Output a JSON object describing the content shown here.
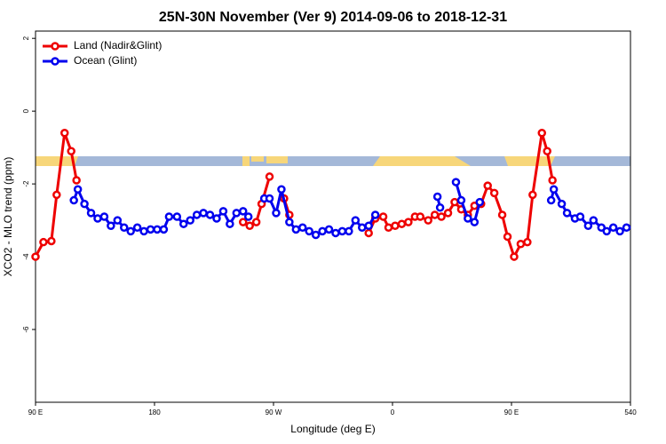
{
  "chart_data": {
    "type": "line",
    "title": "25N-30N November (Ver 9)   2014-09-06 to 2018-12-31",
    "xlabel": "Longitude (deg E)",
    "ylabel": "XCO2 - MLO trend (ppm)",
    "xlim": [
      90,
      540
    ],
    "xticks": [
      {
        "value": 90,
        "label": "90 E"
      },
      180,
      {
        "value": 270,
        "label": "90 W"
      },
      {
        "value": 360,
        "label": "0"
      },
      {
        "value": 450,
        "label": "90 E"
      },
      540
    ],
    "ylim": [
      -8,
      2.2
    ],
    "yticks": [
      2,
      0,
      -2,
      -4,
      -6
    ],
    "legend": "top-left",
    "series": [
      {
        "name": "Land (Nadir&Glint)",
        "color": "#ee0000",
        "x": [
          90,
          96,
          102,
          106,
          112,
          117,
          121,
          null,
          247,
          252,
          257,
          261,
          267,
          null,
          278,
          282,
          null,
          342,
          347,
          353,
          357,
          362,
          367,
          372,
          377,
          381,
          387,
          392,
          397,
          402,
          407,
          412,
          417,
          422,
          427,
          432,
          437,
          443,
          447,
          452,
          457,
          462,
          466,
          473,
          477,
          481
        ],
        "values": [
          -4.0,
          -3.6,
          -3.57,
          -2.3,
          -0.6,
          -1.1,
          -1.9,
          null,
          -3.05,
          -3.15,
          -3.05,
          -2.55,
          -1.8,
          null,
          -2.4,
          -2.85,
          null,
          -3.35,
          -2.95,
          -2.9,
          -3.2,
          -3.15,
          -3.1,
          -3.05,
          -2.9,
          -2.9,
          -3.0,
          -2.85,
          -2.9,
          -2.8,
          -2.5,
          -2.7,
          -2.85,
          -2.6,
          -2.55,
          -2.05,
          -2.25,
          -2.85,
          -3.45,
          -4.0,
          -3.65,
          -3.6,
          -2.3,
          -0.6,
          -1.1,
          -1.9
        ]
      },
      {
        "name": "Ocean (Glint)",
        "color": "#0000ee",
        "x": [
          119,
          122,
          127,
          132,
          137,
          142,
          147,
          152,
          157,
          162,
          167,
          172,
          177,
          182,
          187,
          191,
          197,
          202,
          207,
          212,
          217,
          222,
          227,
          232,
          237,
          242,
          247,
          251,
          null,
          263,
          267,
          272,
          276,
          282,
          287,
          292,
          297,
          302,
          307,
          312,
          317,
          322,
          327,
          332,
          337,
          342,
          347,
          null,
          394,
          396,
          null,
          408,
          412,
          417,
          422,
          426,
          null,
          480,
          482,
          488,
          492,
          498,
          502,
          508,
          512,
          518,
          522,
          527,
          532,
          537
        ],
        "values": [
          -2.45,
          -2.15,
          -2.55,
          -2.8,
          -2.95,
          -2.9,
          -3.15,
          -3.0,
          -3.2,
          -3.3,
          -3.2,
          -3.3,
          -3.25,
          -3.25,
          -3.25,
          -2.9,
          -2.9,
          -3.1,
          -3.0,
          -2.85,
          -2.8,
          -2.85,
          -2.95,
          -2.75,
          -3.1,
          -2.8,
          -2.75,
          -2.9,
          null,
          -2.4,
          -2.4,
          -2.8,
          -2.15,
          -3.05,
          -3.25,
          -3.2,
          -3.3,
          -3.4,
          -3.3,
          -3.25,
          -3.35,
          -3.3,
          -3.3,
          -3.0,
          -3.2,
          -3.15,
          -2.85,
          null,
          -2.35,
          -2.65,
          null,
          -1.95,
          -2.45,
          -2.95,
          -3.05,
          -2.5,
          null,
          -2.45,
          -2.15,
          -2.55,
          -2.8,
          -2.95,
          -2.9,
          -3.15,
          -3.0,
          -3.2,
          -3.3,
          -3.2,
          -3.3,
          -3.2
        ]
      }
    ]
  }
}
